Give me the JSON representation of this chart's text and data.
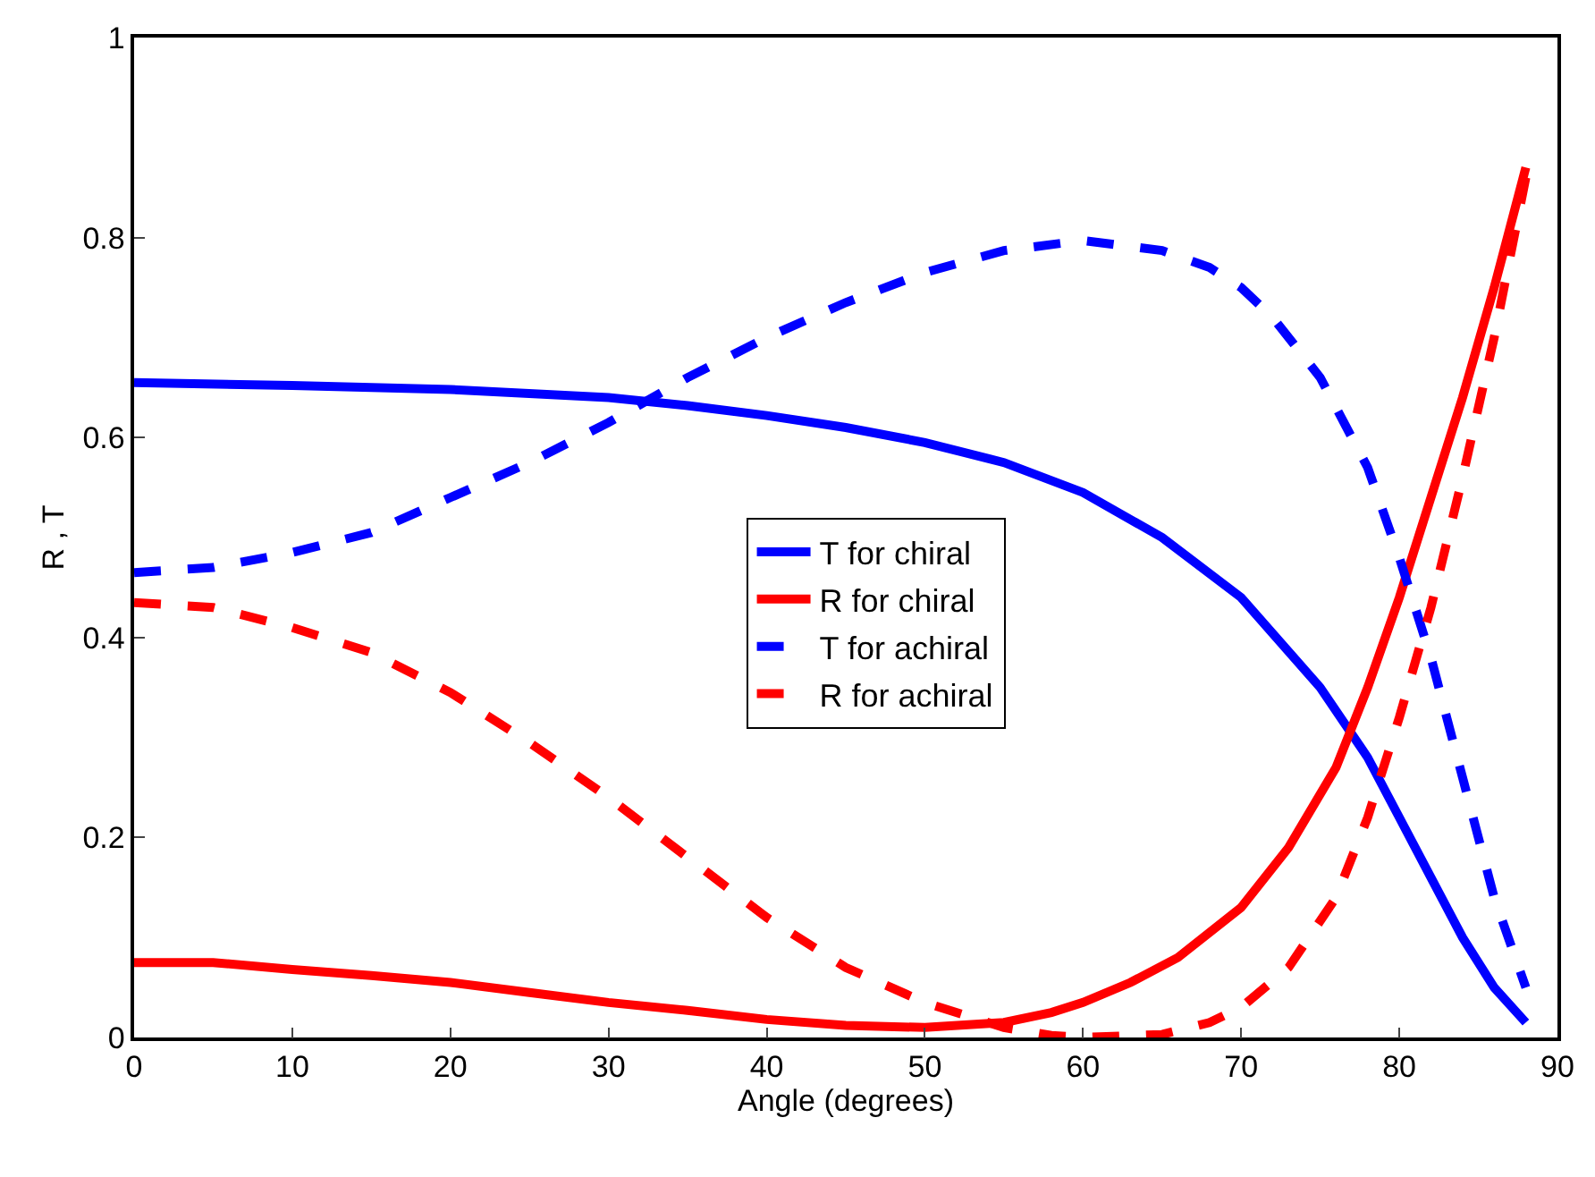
{
  "chart_data": {
    "type": "line",
    "xlabel": "Angle (degrees)",
    "ylabel": "R , T",
    "xlim": [
      0,
      90
    ],
    "ylim": [
      0,
      1
    ],
    "xticks": [
      0,
      10,
      20,
      30,
      40,
      50,
      60,
      70,
      80,
      90
    ],
    "yticks": [
      0,
      0.2,
      0.4,
      0.6,
      0.8,
      1
    ],
    "legend": "center",
    "marker": "none",
    "series": [
      {
        "name": "T for chiral",
        "color": "#0000ff",
        "line_style": "solid",
        "x": [
          0,
          10,
          20,
          30,
          35,
          40,
          45,
          50,
          55,
          60,
          65,
          70,
          75,
          78,
          80,
          82,
          84,
          86,
          88
        ],
        "values": [
          0.655,
          0.652,
          0.648,
          0.64,
          0.632,
          0.622,
          0.61,
          0.595,
          0.575,
          0.545,
          0.5,
          0.44,
          0.35,
          0.28,
          0.22,
          0.16,
          0.1,
          0.05,
          0.015
        ]
      },
      {
        "name": "R for chiral",
        "color": "#ff0000",
        "line_style": "solid",
        "x": [
          0,
          5,
          10,
          15,
          20,
          25,
          30,
          35,
          40,
          45,
          50,
          55,
          58,
          60,
          63,
          66,
          70,
          73,
          76,
          78,
          80,
          82,
          84,
          86,
          88
        ],
        "values": [
          0.075,
          0.075,
          0.068,
          0.062,
          0.055,
          0.045,
          0.035,
          0.027,
          0.018,
          0.012,
          0.01,
          0.015,
          0.025,
          0.035,
          0.055,
          0.08,
          0.13,
          0.19,
          0.27,
          0.35,
          0.44,
          0.54,
          0.64,
          0.75,
          0.87
        ]
      },
      {
        "name": "T for achiral",
        "color": "#0000ff",
        "line_style": "dashed",
        "x": [
          0,
          5,
          10,
          15,
          20,
          25,
          30,
          35,
          40,
          45,
          50,
          55,
          60,
          65,
          68,
          70,
          72,
          75,
          78,
          80,
          82,
          84,
          86,
          88
        ],
        "values": [
          0.465,
          0.47,
          0.485,
          0.505,
          0.54,
          0.575,
          0.615,
          0.66,
          0.7,
          0.735,
          0.765,
          0.787,
          0.797,
          0.787,
          0.77,
          0.75,
          0.72,
          0.66,
          0.57,
          0.48,
          0.38,
          0.26,
          0.14,
          0.05
        ]
      },
      {
        "name": "R for achiral",
        "color": "#ff0000",
        "line_style": "dashed",
        "x": [
          0,
          5,
          10,
          15,
          20,
          25,
          30,
          35,
          40,
          45,
          50,
          55,
          58,
          60,
          65,
          68,
          70,
          73,
          76,
          78,
          80,
          82,
          84,
          86,
          88
        ],
        "values": [
          0.435,
          0.43,
          0.41,
          0.385,
          0.345,
          0.295,
          0.24,
          0.18,
          0.12,
          0.07,
          0.035,
          0.01,
          0.002,
          0,
          0.003,
          0.015,
          0.03,
          0.07,
          0.14,
          0.22,
          0.32,
          0.43,
          0.56,
          0.7,
          0.86
        ]
      }
    ]
  }
}
